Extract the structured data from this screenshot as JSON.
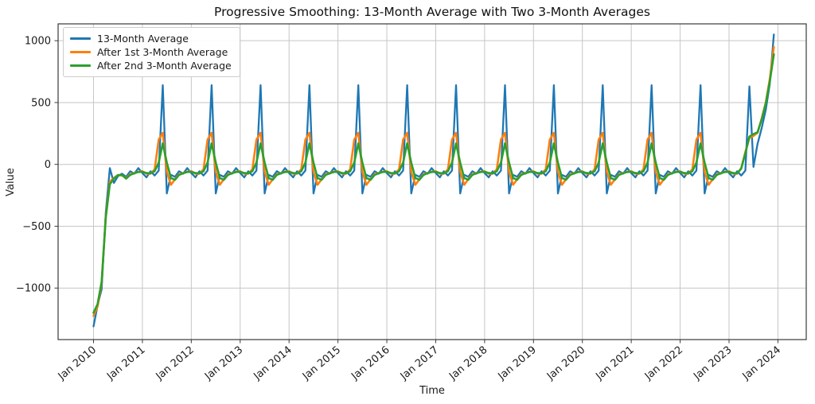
{
  "figure": {
    "title": "Progressive Smoothing: 13-Month Average with Two 3-Month Averages",
    "xlabel": "Time",
    "ylabel": "Value"
  },
  "chart_data": {
    "type": "line",
    "title": "Progressive Smoothing: 13-Month Average with Two 3-Month Averages",
    "xlabel": "Time",
    "ylabel": "Value",
    "x_start": "2010-01",
    "x_freq": "monthly",
    "x_tick_labels": [
      "Jan 2010",
      "Jan 2011",
      "Jan 2012",
      "Jan 2013",
      "Jan 2014",
      "Jan 2015",
      "Jan 2016",
      "Jan 2017",
      "Jan 2018",
      "Jan 2019",
      "Jan 2020",
      "Jan 2021",
      "Jan 2022",
      "Jan 2023",
      "Jan 2024"
    ],
    "y_ticks": [
      1000,
      500,
      0,
      -500,
      -1000
    ],
    "y_tick_labels": [
      "1000",
      "500",
      "0",
      "−500",
      "−1000"
    ],
    "ylim": [
      -1417,
      1137
    ],
    "grid": true,
    "legend_position": "upper left",
    "series": [
      {
        "name": "13-Month Average",
        "color": "#1f77b4",
        "values": [
          -1310,
          -1140,
          -1010,
          -390,
          -30,
          -150,
          -95,
          -75,
          -100,
          -55,
          -75,
          -30,
          -70,
          -105,
          -55,
          -90,
          -50,
          640,
          -235,
          -85,
          -100,
          -55,
          -75,
          -30,
          -70,
          -105,
          -55,
          -90,
          -50,
          640,
          -235,
          -85,
          -100,
          -55,
          -75,
          -30,
          -70,
          -105,
          -55,
          -90,
          -50,
          640,
          -235,
          -85,
          -100,
          -55,
          -75,
          -30,
          -70,
          -105,
          -55,
          -90,
          -50,
          640,
          -235,
          -85,
          -100,
          -55,
          -75,
          -30,
          -70,
          -105,
          -55,
          -90,
          -50,
          640,
          -235,
          -85,
          -100,
          -55,
          -75,
          -30,
          -70,
          -105,
          -55,
          -90,
          -50,
          640,
          -235,
          -85,
          -100,
          -55,
          -75,
          -30,
          -70,
          -105,
          -55,
          -90,
          -50,
          640,
          -235,
          -85,
          -100,
          -55,
          -75,
          -30,
          -70,
          -105,
          -55,
          -90,
          -50,
          640,
          -235,
          -85,
          -100,
          -55,
          -75,
          -30,
          -70,
          -105,
          -55,
          -90,
          -50,
          640,
          -235,
          -85,
          -100,
          -55,
          -75,
          -30,
          -70,
          -105,
          -55,
          -90,
          -50,
          640,
          -235,
          -85,
          -100,
          -55,
          -75,
          -30,
          -70,
          -105,
          -55,
          -90,
          -50,
          640,
          -235,
          -85,
          -100,
          -55,
          -75,
          -30,
          -70,
          -105,
          -55,
          -90,
          -50,
          640,
          -235,
          -85,
          -100,
          -55,
          -75,
          -30,
          -70,
          -105,
          -55,
          -90,
          -50,
          630,
          -20,
          165,
          290,
          440,
          650,
          1050
        ]
      },
      {
        "name": "After 1st 3-Month Average",
        "color": "#ff7f0e",
        "values": [
          -1225,
          -1150,
          -960,
          -420,
          -140,
          -110,
          -85,
          -90,
          -110,
          -80,
          -70,
          -60,
          -55,
          -75,
          -75,
          -40,
          200,
          255,
          -60,
          -165,
          -120,
          -80,
          -70,
          -60,
          -55,
          -75,
          -75,
          -40,
          200,
          255,
          -60,
          -165,
          -120,
          -80,
          -70,
          -60,
          -55,
          -75,
          -75,
          -40,
          200,
          255,
          -60,
          -165,
          -120,
          -80,
          -70,
          -60,
          -55,
          -75,
          -75,
          -40,
          200,
          255,
          -60,
          -165,
          -120,
          -80,
          -70,
          -60,
          -55,
          -75,
          -75,
          -40,
          200,
          255,
          -60,
          -165,
          -120,
          -80,
          -70,
          -60,
          -55,
          -75,
          -75,
          -40,
          200,
          255,
          -60,
          -165,
          -120,
          -80,
          -70,
          -60,
          -55,
          -75,
          -75,
          -40,
          200,
          255,
          -60,
          -165,
          -120,
          -80,
          -70,
          -60,
          -55,
          -75,
          -75,
          -40,
          200,
          255,
          -60,
          -165,
          -120,
          -80,
          -70,
          -60,
          -55,
          -75,
          -75,
          -40,
          200,
          255,
          -60,
          -165,
          -120,
          -80,
          -70,
          -60,
          -55,
          -75,
          -75,
          -40,
          200,
          255,
          -60,
          -165,
          -120,
          -80,
          -70,
          -60,
          -55,
          -75,
          -75,
          -40,
          200,
          255,
          -60,
          -165,
          -120,
          -80,
          -70,
          -60,
          -55,
          -75,
          -75,
          -40,
          200,
          255,
          -60,
          -165,
          -120,
          -80,
          -70,
          -60,
          -55,
          -75,
          -75,
          -30,
          100,
          215,
          230,
          255,
          370,
          500,
          690,
          950
        ]
      },
      {
        "name": "After 2nd 3-Month Average",
        "color": "#2ca02c",
        "values": [
          -1200,
          -1130,
          -950,
          -430,
          -160,
          -115,
          -88,
          -85,
          -115,
          -85,
          -72,
          -62,
          -60,
          -70,
          -72,
          -55,
          15,
          170,
          15,
          -110,
          -125,
          -85,
          -72,
          -62,
          -60,
          -70,
          -72,
          -55,
          15,
          170,
          15,
          -110,
          -125,
          -85,
          -72,
          -62,
          -60,
          -70,
          -72,
          -55,
          15,
          170,
          15,
          -110,
          -125,
          -85,
          -72,
          -62,
          -60,
          -70,
          -72,
          -55,
          15,
          170,
          15,
          -110,
          -125,
          -85,
          -72,
          -62,
          -60,
          -70,
          -72,
          -55,
          15,
          170,
          15,
          -110,
          -125,
          -85,
          -72,
          -62,
          -60,
          -70,
          -72,
          -55,
          15,
          170,
          15,
          -110,
          -125,
          -85,
          -72,
          -62,
          -60,
          -70,
          -72,
          -55,
          15,
          170,
          15,
          -110,
          -125,
          -85,
          -72,
          -62,
          -60,
          -70,
          -72,
          -55,
          15,
          170,
          15,
          -110,
          -125,
          -85,
          -72,
          -62,
          -60,
          -70,
          -72,
          -55,
          15,
          170,
          15,
          -110,
          -125,
          -85,
          -72,
          -62,
          -60,
          -70,
          -72,
          -55,
          15,
          170,
          15,
          -110,
          -125,
          -85,
          -72,
          -62,
          -60,
          -70,
          -72,
          -55,
          15,
          170,
          15,
          -110,
          -125,
          -85,
          -72,
          -62,
          -60,
          -70,
          -72,
          -55,
          15,
          170,
          15,
          -110,
          -125,
          -85,
          -72,
          -62,
          -60,
          -70,
          -72,
          -35,
          90,
          225,
          245,
          260,
          360,
          490,
          670,
          890
        ]
      }
    ]
  }
}
